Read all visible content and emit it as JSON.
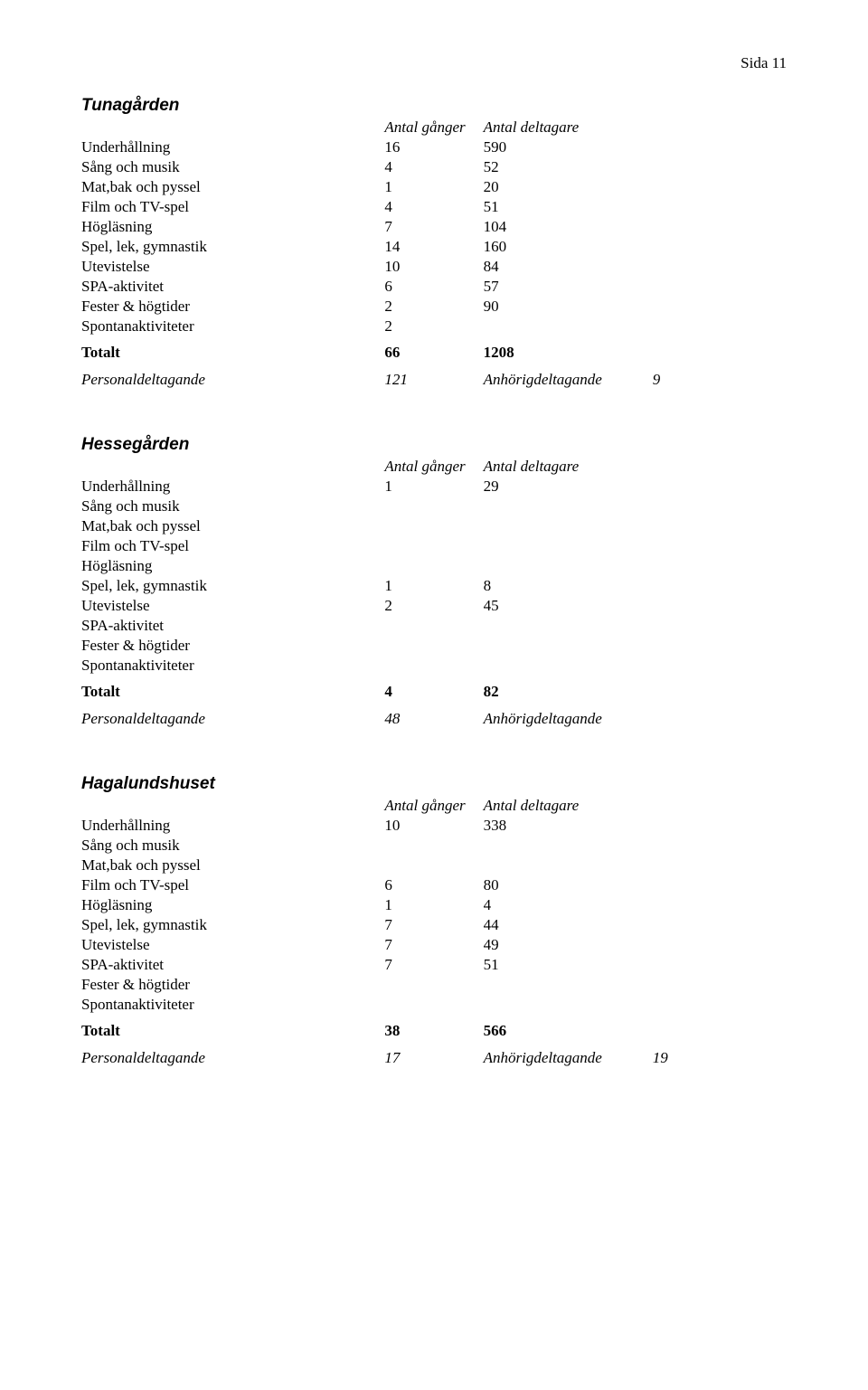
{
  "page_label": "Sida 11",
  "headers": {
    "col1": "Antal gånger",
    "col2": "Antal deltagare"
  },
  "sections": [
    {
      "title": "Tunagården",
      "rows": [
        {
          "label": "Underhållning",
          "v1": "16",
          "v2": "590"
        },
        {
          "label": "Sång och musik",
          "v1": "4",
          "v2": "52"
        },
        {
          "label": "Mat,bak och pyssel",
          "v1": "1",
          "v2": "20"
        },
        {
          "label": "Film och TV-spel",
          "v1": "4",
          "v2": "51"
        },
        {
          "label": "Högläsning",
          "v1": "7",
          "v2": "104"
        },
        {
          "label": "Spel, lek, gymnastik",
          "v1": "14",
          "v2": "160"
        },
        {
          "label": "Utevistelse",
          "v1": "10",
          "v2": "84"
        },
        {
          "label": "SPA-aktivitet",
          "v1": "6",
          "v2": "57"
        },
        {
          "label": "Fester & högtider",
          "v1": "2",
          "v2": "90"
        },
        {
          "label": "Spontanaktiviteter",
          "v1": "2",
          "v2": ""
        }
      ],
      "total": {
        "label": "Totalt",
        "v1": "66",
        "v2": "1208"
      },
      "footer": {
        "l1": "Personaldeltagande",
        "l1v": "121",
        "l2": "Anhörigdeltagande",
        "l2v": "9"
      }
    },
    {
      "title": "Hessegården",
      "rows": [
        {
          "label": "Underhållning",
          "v1": "1",
          "v2": "29"
        },
        {
          "label": "Sång och musik",
          "v1": "",
          "v2": ""
        },
        {
          "label": "Mat,bak och pyssel",
          "v1": "",
          "v2": ""
        },
        {
          "label": "Film och TV-spel",
          "v1": "",
          "v2": ""
        },
        {
          "label": "Högläsning",
          "v1": "",
          "v2": ""
        },
        {
          "label": "Spel, lek, gymnastik",
          "v1": "1",
          "v2": "8"
        },
        {
          "label": "Utevistelse",
          "v1": "2",
          "v2": "45"
        },
        {
          "label": "SPA-aktivitet",
          "v1": "",
          "v2": ""
        },
        {
          "label": "Fester & högtider",
          "v1": "",
          "v2": ""
        },
        {
          "label": "Spontanaktiviteter",
          "v1": "",
          "v2": ""
        }
      ],
      "total": {
        "label": "Totalt",
        "v1": "4",
        "v2": "82"
      },
      "footer": {
        "l1": "Personaldeltagande",
        "l1v": "48",
        "l2": "Anhörigdeltagande",
        "l2v": ""
      }
    },
    {
      "title": "Hagalundshuset",
      "rows": [
        {
          "label": "Underhållning",
          "v1": "10",
          "v2": "338"
        },
        {
          "label": "Sång och musik",
          "v1": "",
          "v2": ""
        },
        {
          "label": "Mat,bak och pyssel",
          "v1": "",
          "v2": ""
        },
        {
          "label": "Film och TV-spel",
          "v1": "6",
          "v2": "80"
        },
        {
          "label": "Högläsning",
          "v1": "1",
          "v2": "4"
        },
        {
          "label": "Spel, lek, gymnastik",
          "v1": "7",
          "v2": "44"
        },
        {
          "label": "Utevistelse",
          "v1": "7",
          "v2": "49"
        },
        {
          "label": "SPA-aktivitet",
          "v1": "7",
          "v2": "51"
        },
        {
          "label": "Fester & högtider",
          "v1": "",
          "v2": ""
        },
        {
          "label": "Spontanaktiviteter",
          "v1": "",
          "v2": ""
        }
      ],
      "total": {
        "label": "Totalt",
        "v1": "38",
        "v2": "566"
      },
      "footer": {
        "l1": "Personaldeltagande",
        "l1v": "17",
        "l2": "Anhörigdeltagande",
        "l2v": "19"
      }
    }
  ]
}
